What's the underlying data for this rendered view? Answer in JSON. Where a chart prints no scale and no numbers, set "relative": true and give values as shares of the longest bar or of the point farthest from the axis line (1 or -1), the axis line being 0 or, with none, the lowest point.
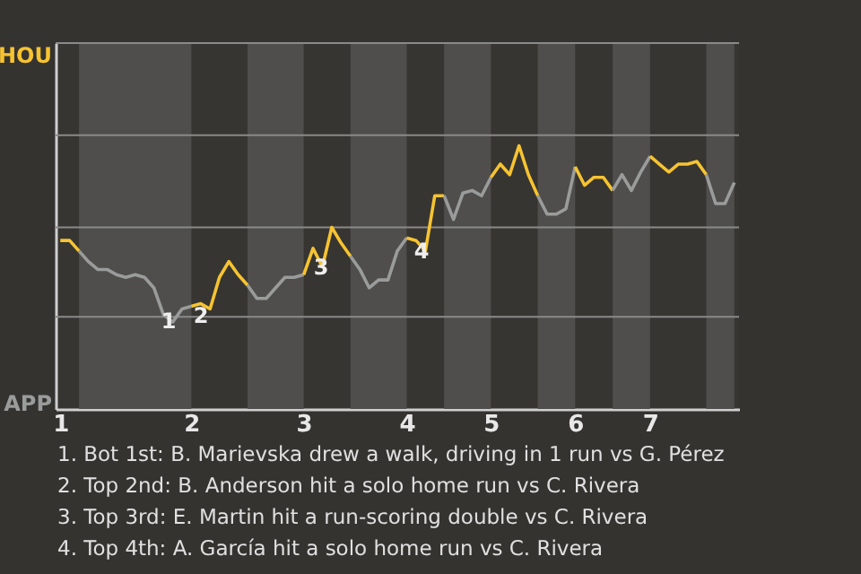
{
  "chart_data": {
    "type": "line",
    "relative": true,
    "categories": [
      "1",
      null,
      null,
      null,
      null,
      null,
      null,
      null,
      null,
      null,
      null,
      null,
      null,
      null,
      "2",
      null,
      null,
      null,
      null,
      null,
      null,
      null,
      null,
      null,
      null,
      null,
      "3",
      null,
      null,
      null,
      null,
      null,
      null,
      null,
      null,
      null,
      null,
      "4",
      null,
      null,
      null,
      null,
      null,
      null,
      null,
      null,
      "5",
      null,
      null,
      null,
      null,
      null,
      null,
      null,
      null,
      "6",
      null,
      null,
      null,
      null,
      null,
      null,
      null,
      "7",
      null,
      null,
      null,
      null,
      null,
      null,
      null,
      null,
      null
    ],
    "marker": "none",
    "line_style": "solid",
    "ref_lines": [
      {
        "axis": "y",
        "value": 0.35,
        "color": "#8a8a8a"
      },
      {
        "axis": "y",
        "value": 0.69,
        "color": "#8a8a8a"
      },
      {
        "axis": "y",
        "value": 1.04,
        "color": "#8a8a8a"
      },
      {
        "axis": "y",
        "value": 1.39,
        "color": "#8a8a8a"
      }
    ],
    "series": [
      {
        "color": "#f6c331",
        "values": [
          0.64,
          0.64,
          0.6,
          null,
          null,
          null,
          null,
          null,
          null,
          null,
          null,
          null,
          null,
          null,
          null,
          null,
          null,
          null,
          null,
          null,
          null,
          null,
          null,
          null,
          null,
          null,
          null,
          null,
          null,
          null,
          null,
          null,
          null,
          null,
          null,
          null,
          null,
          null,
          null,
          null,
          null,
          null,
          null,
          null,
          null,
          null,
          null,
          null,
          null,
          null,
          null,
          null,
          null,
          null,
          null,
          null,
          null,
          null,
          null,
          null,
          null,
          null,
          null,
          null,
          null,
          null,
          null,
          null,
          null,
          null,
          null,
          null,
          null
        ]
      },
      {
        "color": "#9a9c9c",
        "values": [
          null,
          null,
          0.6,
          0.56,
          0.53,
          0.53,
          0.51,
          0.5,
          0.51,
          0.5,
          0.46,
          0.36,
          0.33,
          0.38,
          0.39,
          null,
          null,
          null,
          null,
          null,
          null,
          null,
          null,
          null,
          null,
          null,
          null,
          null,
          null,
          null,
          null,
          null,
          null,
          null,
          null,
          null,
          null,
          null,
          null,
          null,
          null,
          null,
          null,
          null,
          null,
          null,
          null,
          null,
          null,
          null,
          null,
          null,
          null,
          null,
          null,
          null,
          null,
          null,
          null,
          null,
          null,
          null,
          null,
          null,
          null,
          null,
          null,
          null,
          null,
          null,
          null,
          null,
          null
        ]
      },
      {
        "color": "#f6c331",
        "values": [
          null,
          null,
          null,
          null,
          null,
          null,
          null,
          null,
          null,
          null,
          null,
          null,
          null,
          null,
          0.39,
          0.4,
          0.38,
          0.5,
          0.56,
          0.51,
          0.47,
          null,
          null,
          null,
          null,
          null,
          null,
          null,
          null,
          null,
          null,
          null,
          null,
          null,
          null,
          null,
          null,
          null,
          null,
          null,
          null,
          null,
          null,
          null,
          null,
          null,
          null,
          null,
          null,
          null,
          null,
          null,
          null,
          null,
          null,
          null,
          null,
          null,
          null,
          null,
          null,
          null,
          null,
          null,
          null,
          null,
          null,
          null,
          null,
          null,
          null,
          null,
          null
        ]
      },
      {
        "color": "#9a9c9c",
        "values": [
          null,
          null,
          null,
          null,
          null,
          null,
          null,
          null,
          null,
          null,
          null,
          null,
          null,
          null,
          null,
          null,
          null,
          null,
          null,
          null,
          0.47,
          0.42,
          0.42,
          0.46,
          0.5,
          0.5,
          0.51,
          null,
          null,
          null,
          null,
          null,
          null,
          null,
          null,
          null,
          null,
          null,
          null,
          null,
          null,
          null,
          null,
          null,
          null,
          null,
          null,
          null,
          null,
          null,
          null,
          null,
          null,
          null,
          null,
          null,
          null,
          null,
          null,
          null,
          null,
          null,
          null,
          null,
          null,
          null,
          null,
          null,
          null,
          null,
          null,
          null,
          null
        ]
      },
      {
        "color": "#f6c331",
        "values": [
          null,
          null,
          null,
          null,
          null,
          null,
          null,
          null,
          null,
          null,
          null,
          null,
          null,
          null,
          null,
          null,
          null,
          null,
          null,
          null,
          null,
          null,
          null,
          null,
          null,
          null,
          0.51,
          0.61,
          0.54,
          0.69,
          0.63,
          0.58,
          null,
          null,
          null,
          null,
          null,
          null,
          null,
          null,
          null,
          null,
          null,
          null,
          null,
          null,
          null,
          null,
          null,
          null,
          null,
          null,
          null,
          null,
          null,
          null,
          null,
          null,
          null,
          null,
          null,
          null,
          null,
          null,
          null,
          null,
          null,
          null,
          null,
          null,
          null,
          null,
          null
        ]
      },
      {
        "color": "#9a9c9c",
        "values": [
          null,
          null,
          null,
          null,
          null,
          null,
          null,
          null,
          null,
          null,
          null,
          null,
          null,
          null,
          null,
          null,
          null,
          null,
          null,
          null,
          null,
          null,
          null,
          null,
          null,
          null,
          null,
          null,
          null,
          null,
          null,
          0.58,
          0.53,
          0.46,
          0.49,
          0.49,
          0.6,
          0.65,
          null,
          null,
          null,
          null,
          null,
          null,
          null,
          null,
          null,
          null,
          null,
          null,
          null,
          null,
          null,
          null,
          null,
          null,
          null,
          null,
          null,
          null,
          null,
          null,
          null,
          null,
          null,
          null,
          null,
          null,
          null,
          null,
          null,
          null,
          null
        ]
      },
      {
        "color": "#f6c331",
        "values": [
          null,
          null,
          null,
          null,
          null,
          null,
          null,
          null,
          null,
          null,
          null,
          null,
          null,
          null,
          null,
          null,
          null,
          null,
          null,
          null,
          null,
          null,
          null,
          null,
          null,
          null,
          null,
          null,
          null,
          null,
          null,
          null,
          null,
          null,
          null,
          null,
          null,
          0.65,
          0.64,
          0.6,
          0.81,
          0.81,
          null,
          null,
          null,
          null,
          null,
          null,
          null,
          null,
          null,
          null,
          null,
          null,
          null,
          null,
          null,
          null,
          null,
          null,
          null,
          null,
          null,
          null,
          null,
          null,
          null,
          null,
          null,
          null,
          null,
          null,
          null
        ]
      },
      {
        "color": "#9a9c9c",
        "values": [
          null,
          null,
          null,
          null,
          null,
          null,
          null,
          null,
          null,
          null,
          null,
          null,
          null,
          null,
          null,
          null,
          null,
          null,
          null,
          null,
          null,
          null,
          null,
          null,
          null,
          null,
          null,
          null,
          null,
          null,
          null,
          null,
          null,
          null,
          null,
          null,
          null,
          null,
          null,
          null,
          null,
          0.81,
          0.72,
          0.82,
          0.83,
          0.81,
          0.88,
          null,
          null,
          null,
          null,
          null,
          null,
          null,
          null,
          null,
          null,
          null,
          null,
          null,
          null,
          null,
          null,
          null,
          null,
          null,
          null,
          null,
          null,
          null,
          null,
          null,
          null
        ]
      },
      {
        "color": "#f6c331",
        "values": [
          null,
          null,
          null,
          null,
          null,
          null,
          null,
          null,
          null,
          null,
          null,
          null,
          null,
          null,
          null,
          null,
          null,
          null,
          null,
          null,
          null,
          null,
          null,
          null,
          null,
          null,
          null,
          null,
          null,
          null,
          null,
          null,
          null,
          null,
          null,
          null,
          null,
          null,
          null,
          null,
          null,
          null,
          null,
          null,
          null,
          null,
          0.88,
          0.93,
          0.89,
          1,
          0.89,
          0.81,
          null,
          null,
          null,
          null,
          null,
          null,
          null,
          null,
          null,
          null,
          null,
          null,
          null,
          null,
          null,
          null,
          null,
          null,
          null,
          null,
          null
        ]
      },
      {
        "color": "#9a9c9c",
        "values": [
          null,
          null,
          null,
          null,
          null,
          null,
          null,
          null,
          null,
          null,
          null,
          null,
          null,
          null,
          null,
          null,
          null,
          null,
          null,
          null,
          null,
          null,
          null,
          null,
          null,
          null,
          null,
          null,
          null,
          null,
          null,
          null,
          null,
          null,
          null,
          null,
          null,
          null,
          null,
          null,
          null,
          null,
          null,
          null,
          null,
          null,
          null,
          null,
          null,
          null,
          null,
          0.81,
          0.74,
          0.74,
          0.76,
          0.92,
          null,
          null,
          null,
          null,
          null,
          null,
          null,
          null,
          null,
          null,
          null,
          null,
          null,
          null,
          null,
          null,
          null
        ]
      },
      {
        "color": "#f6c331",
        "values": [
          null,
          null,
          null,
          null,
          null,
          null,
          null,
          null,
          null,
          null,
          null,
          null,
          null,
          null,
          null,
          null,
          null,
          null,
          null,
          null,
          null,
          null,
          null,
          null,
          null,
          null,
          null,
          null,
          null,
          null,
          null,
          null,
          null,
          null,
          null,
          null,
          null,
          null,
          null,
          null,
          null,
          null,
          null,
          null,
          null,
          null,
          null,
          null,
          null,
          null,
          null,
          null,
          null,
          null,
          null,
          0.92,
          0.85,
          0.88,
          0.88,
          0.83,
          null,
          null,
          null,
          null,
          null,
          null,
          null,
          null,
          null,
          null,
          null,
          null,
          null
        ]
      },
      {
        "color": "#9a9c9c",
        "values": [
          null,
          null,
          null,
          null,
          null,
          null,
          null,
          null,
          null,
          null,
          null,
          null,
          null,
          null,
          null,
          null,
          null,
          null,
          null,
          null,
          null,
          null,
          null,
          null,
          null,
          null,
          null,
          null,
          null,
          null,
          null,
          null,
          null,
          null,
          null,
          null,
          null,
          null,
          null,
          null,
          null,
          null,
          null,
          null,
          null,
          null,
          null,
          null,
          null,
          null,
          null,
          null,
          null,
          null,
          null,
          null,
          null,
          null,
          null,
          0.83,
          0.89,
          0.83,
          0.9,
          0.96,
          null,
          null,
          null,
          null,
          null,
          null,
          null,
          null,
          null
        ]
      },
      {
        "color": "#f6c331",
        "values": [
          null,
          null,
          null,
          null,
          null,
          null,
          null,
          null,
          null,
          null,
          null,
          null,
          null,
          null,
          null,
          null,
          null,
          null,
          null,
          null,
          null,
          null,
          null,
          null,
          null,
          null,
          null,
          null,
          null,
          null,
          null,
          null,
          null,
          null,
          null,
          null,
          null,
          null,
          null,
          null,
          null,
          null,
          null,
          null,
          null,
          null,
          null,
          null,
          null,
          null,
          null,
          null,
          null,
          null,
          null,
          null,
          null,
          null,
          null,
          null,
          null,
          null,
          null,
          0.96,
          0.93,
          0.9,
          0.93,
          0.93,
          0.94,
          0.89,
          null,
          null,
          null
        ]
      },
      {
        "color": "#9a9c9c",
        "values": [
          null,
          null,
          null,
          null,
          null,
          null,
          null,
          null,
          null,
          null,
          null,
          null,
          null,
          null,
          null,
          null,
          null,
          null,
          null,
          null,
          null,
          null,
          null,
          null,
          null,
          null,
          null,
          null,
          null,
          null,
          null,
          null,
          null,
          null,
          null,
          null,
          null,
          null,
          null,
          null,
          null,
          null,
          null,
          null,
          null,
          null,
          null,
          null,
          null,
          null,
          null,
          null,
          null,
          null,
          null,
          null,
          null,
          null,
          null,
          null,
          null,
          null,
          null,
          null,
          null,
          null,
          null,
          null,
          null,
          0.89,
          0.78,
          0.78,
          0.86
        ]
      }
    ],
    "annotations": [
      "HOU",
      "APP",
      "1",
      "2",
      "3",
      "4",
      "1. Bot 1st: B. Marievska drew a walk, driving in 1 run vs G. Pérez",
      "2. Top 2nd: B. Anderson hit a solo home run vs C. Rivera",
      "3. Top 3rd: E. Martin hit a run-scoring double vs C. Rivera",
      "4. Top 4th: A. García hit a solo home run vs C. Rivera"
    ]
  }
}
